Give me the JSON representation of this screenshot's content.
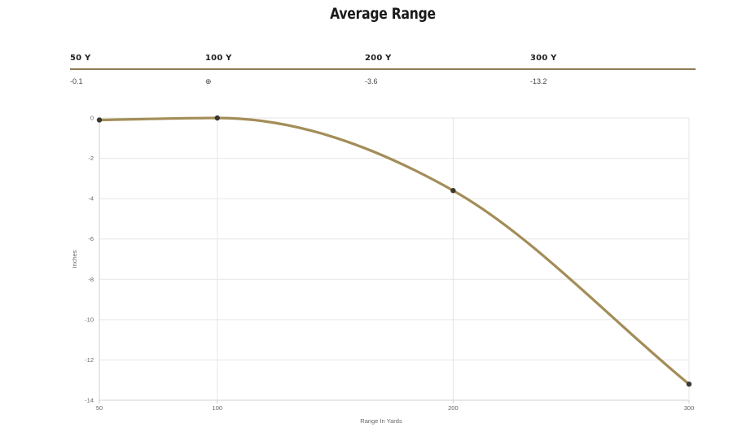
{
  "page": {
    "title": "Average Range"
  },
  "range_table": {
    "headers": [
      "50 Y",
      "100 Y",
      "200 Y",
      "300 Y"
    ],
    "values": [
      "-0.1",
      "⊕",
      "-3.6",
      "-13.2"
    ]
  },
  "colors": {
    "line": "#a38d58",
    "point": "#3b3930",
    "grid": "#e6e6e6",
    "divider": "#8d7b56"
  },
  "chart_data": {
    "type": "line",
    "x": [
      50,
      100,
      200,
      300
    ],
    "series": [
      {
        "values": [
          -0.1,
          0,
          -3.6,
          -13.2
        ]
      }
    ],
    "xlabel": "Range In Yards",
    "ylabel": "Inches",
    "x_ticks": [
      "50",
      "100",
      "200",
      "300"
    ],
    "y_ticks": [
      "0",
      "-2",
      "-4",
      "-6",
      "-8",
      "-10",
      "-12",
      "-14"
    ],
    "xlim": [
      50,
      300
    ],
    "ylim": [
      -14,
      0
    ],
    "grid": true,
    "legend": "none"
  }
}
